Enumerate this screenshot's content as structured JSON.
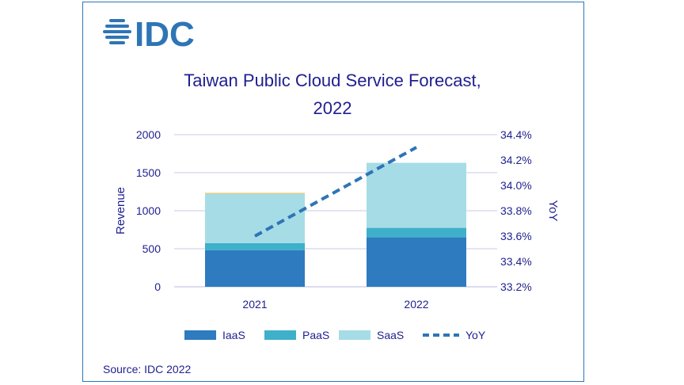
{
  "logo": {
    "text": "IDC",
    "icon": "idc-globe-icon",
    "color": "#2e75b6"
  },
  "source": "Source: IDC 2022",
  "chart_data": {
    "type": "bar",
    "stacked": true,
    "title_lines": [
      "Taiwan Public Cloud Service Forecast,",
      "2022"
    ],
    "categories": [
      "2021",
      "2022"
    ],
    "ylabel": "Revenue",
    "ylim": [
      0,
      2000
    ],
    "y_ticks": [
      0,
      500,
      1000,
      1500,
      2000
    ],
    "y2label": "YoY",
    "y2lim": [
      33.2,
      34.4
    ],
    "y2_ticks": [
      "33.2%",
      "33.4%",
      "33.6%",
      "33.8%",
      "34.0%",
      "34.2%",
      "34.4%"
    ],
    "grid": true,
    "legend_position": "bottom",
    "series": [
      {
        "name": "IaaS",
        "kind": "bar",
        "color": "#2e7bbf",
        "values": [
          480,
          650
        ]
      },
      {
        "name": "PaaS",
        "kind": "bar",
        "color": "#3fb0c9",
        "values": [
          95,
          125
        ]
      },
      {
        "name": "SaaS",
        "kind": "bar",
        "color": "#a6dce6",
        "values": [
          650,
          855
        ]
      },
      {
        "name": "",
        "kind": "bar",
        "color": "#f5c242",
        "values": [
          10,
          0
        ]
      },
      {
        "name": "YoY",
        "kind": "line",
        "axis": "right",
        "style": "dashed",
        "color": "#2e75b6",
        "values": [
          33.6,
          34.3
        ]
      }
    ]
  }
}
